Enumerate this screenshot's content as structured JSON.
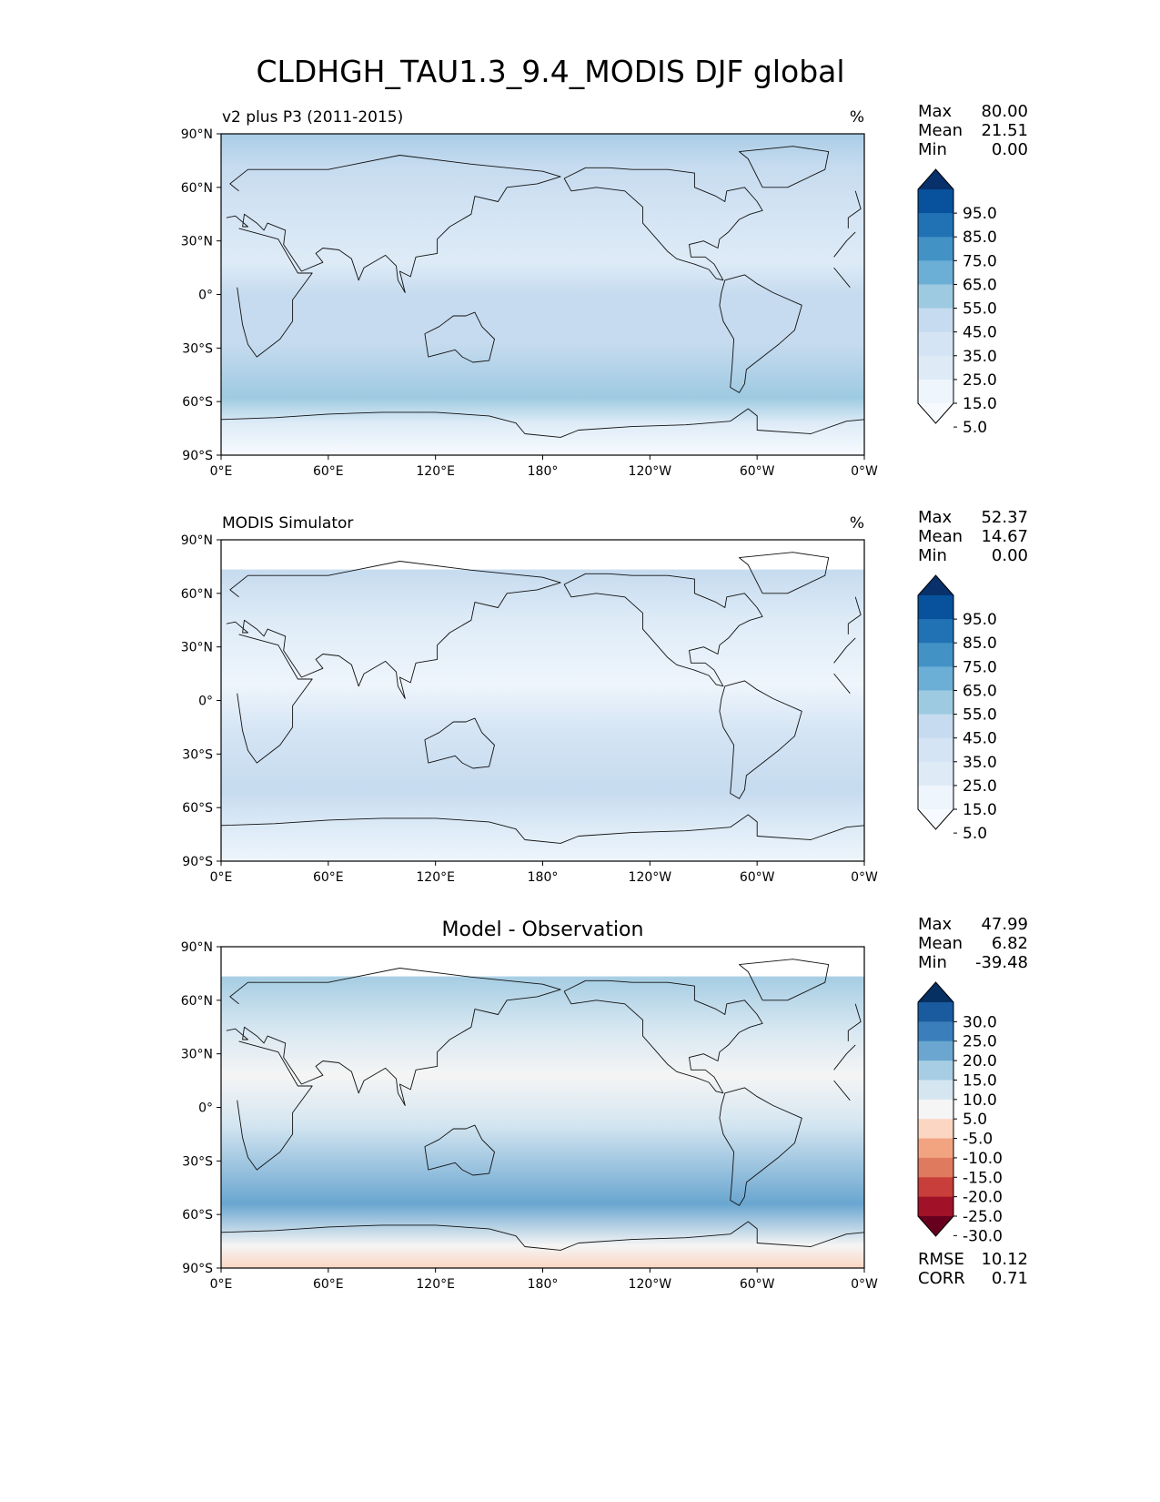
{
  "figure": {
    "title": "CLDHGH_TAU1.3_9.4_MODIS DJF global"
  },
  "axes": {
    "lon_ticks": [
      "0°E",
      "60°E",
      "120°E",
      "180°",
      "120°W",
      "60°W",
      "0°W"
    ],
    "lat_ticks": [
      "90°N",
      "60°N",
      "30°N",
      "0°",
      "30°S",
      "60°S",
      "90°S"
    ]
  },
  "panels": [
    {
      "id": "test",
      "left_title": "v2 plus P3 (2011-2015)",
      "center_title": "",
      "units": "%",
      "stats": [
        {
          "label": "Max",
          "value": "80.00"
        },
        {
          "label": "Mean",
          "value": "21.51"
        },
        {
          "label": "Min",
          "value": "0.00"
        }
      ],
      "colorbar": {
        "labels": [
          "95.0",
          "85.0",
          "75.0",
          "65.0",
          "55.0",
          "45.0",
          "35.0",
          "25.0",
          "15.0",
          "5.0"
        ],
        "colors": [
          "#08306b",
          "#08519c",
          "#2171b5",
          "#4292c6",
          "#6baed6",
          "#9ecae1",
          "#c6dbef",
          "#d4e4f4",
          "#deebf7",
          "#eef5fc",
          "#f7fbff"
        ]
      },
      "footer_stats": []
    },
    {
      "id": "ref",
      "left_title": "MODIS Simulator",
      "center_title": "",
      "units": "%",
      "stats": [
        {
          "label": "Max",
          "value": "52.37"
        },
        {
          "label": "Mean",
          "value": "14.67"
        },
        {
          "label": "Min",
          "value": "0.00"
        }
      ],
      "colorbar": {
        "labels": [
          "95.0",
          "85.0",
          "75.0",
          "65.0",
          "55.0",
          "45.0",
          "35.0",
          "25.0",
          "15.0",
          "5.0"
        ],
        "colors": [
          "#08306b",
          "#08519c",
          "#2171b5",
          "#4292c6",
          "#6baed6",
          "#9ecae1",
          "#c6dbef",
          "#d4e4f4",
          "#deebf7",
          "#eef5fc",
          "#f7fbff"
        ]
      },
      "footer_stats": []
    },
    {
      "id": "diff",
      "left_title": "",
      "center_title": "Model - Observation",
      "units": "",
      "stats": [
        {
          "label": "Max",
          "value": "47.99"
        },
        {
          "label": "Mean",
          "value": "6.82"
        },
        {
          "label": "Min",
          "value": "-39.48"
        }
      ],
      "colorbar": {
        "labels": [
          "30.0",
          "25.0",
          "20.0",
          "15.0",
          "10.0",
          "5.0",
          "-5.0",
          "-10.0",
          "-15.0",
          "-20.0",
          "-25.0",
          "-30.0"
        ],
        "colors": [
          "#053061",
          "#1a5a9e",
          "#3a7fbc",
          "#6aa6d0",
          "#a6cde3",
          "#d5e6f1",
          "#f5f5f5",
          "#fbd6c2",
          "#f2a481",
          "#e07a5f",
          "#c73e3a",
          "#a11228",
          "#67001f"
        ]
      },
      "footer_stats": [
        {
          "label": "RMSE",
          "value": "10.12"
        },
        {
          "label": "CORR",
          "value": "0.71"
        }
      ]
    }
  ]
}
